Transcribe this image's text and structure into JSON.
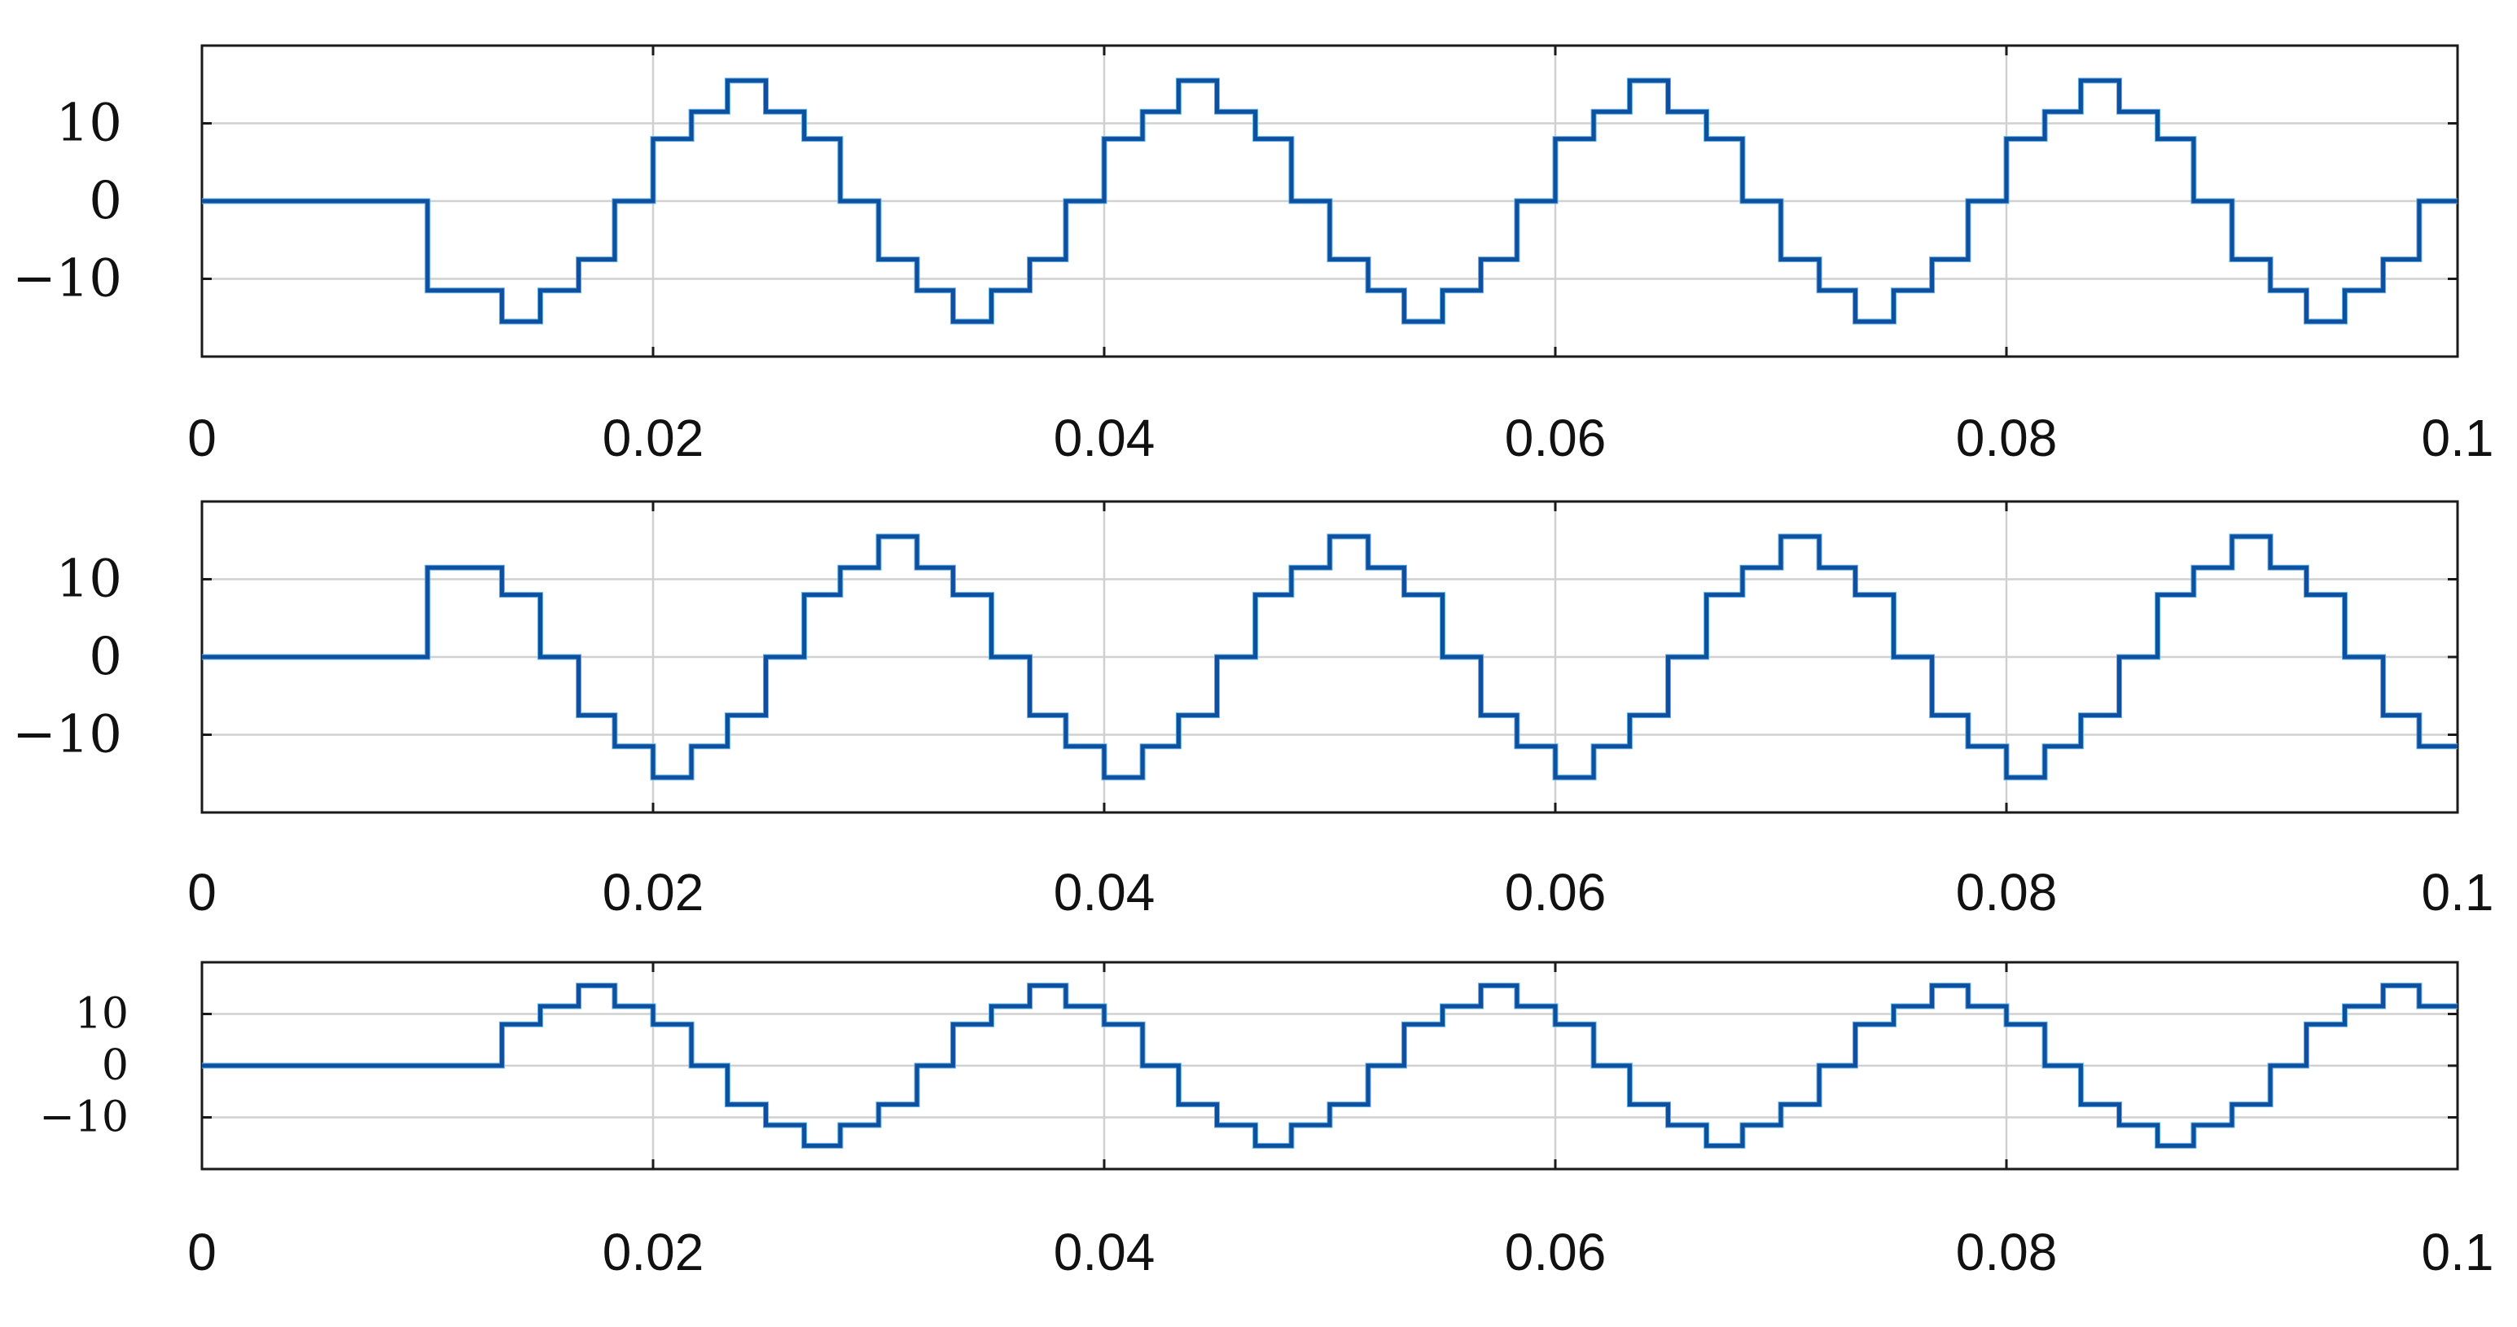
{
  "chart_data": [
    {
      "type": "line",
      "step": "post",
      "title": "",
      "xlabel": "",
      "ylabel": "",
      "xlim": [
        0,
        0.1
      ],
      "ylim": [
        -20,
        20
      ],
      "xticks": [
        0,
        0.02,
        0.04,
        0.06,
        0.08,
        0.1
      ],
      "xtick_labels": [
        "0",
        "0.02",
        "0.04",
        "0.06",
        "0.08",
        "0.1"
      ],
      "yticks": [
        10,
        0,
        -10
      ],
      "ytick_labels": [
        "10",
        "0",
        "−10"
      ],
      "grid": true,
      "series": [
        {
          "color": "#0e4f9e",
          "x": [
            0,
            0.01,
            0.0133,
            0.015,
            0.0167,
            0.0183,
            0.02,
            0.0217,
            0.0233,
            0.025,
            0.0267,
            0.0283,
            0.03,
            0.0317,
            0.0333,
            0.035,
            0.0367,
            0.0383,
            0.04,
            0.0417,
            0.0433,
            0.045,
            0.0467,
            0.0483,
            0.05,
            0.0517,
            0.0533,
            0.055,
            0.0567,
            0.0583,
            0.06,
            0.0617,
            0.0633,
            0.065,
            0.0667,
            0.0683,
            0.07,
            0.0717,
            0.0733,
            0.075,
            0.0767,
            0.0783,
            0.08,
            0.0817,
            0.0833,
            0.085,
            0.0867,
            0.0883,
            0.09,
            0.0917,
            0.0933,
            0.095,
            0.0967,
            0.0983,
            0.1
          ],
          "y": [
            0,
            -11.5,
            -15.5,
            -11.5,
            -7.5,
            0,
            8,
            11.5,
            15.5,
            11.5,
            8,
            0,
            -7.5,
            -11.5,
            -15.5,
            -11.5,
            -7.5,
            0,
            8,
            11.5,
            15.5,
            11.5,
            8,
            0,
            -7.5,
            -11.5,
            -15.5,
            -11.5,
            -7.5,
            0,
            8,
            11.5,
            15.5,
            11.5,
            8,
            0,
            -7.5,
            -11.5,
            -15.5,
            -11.5,
            -7.5,
            0,
            8,
            11.5,
            15.5,
            11.5,
            8,
            0,
            -7.5,
            -11.5,
            -15.5,
            -11.5,
            -7.5,
            0,
            0
          ]
        }
      ]
    },
    {
      "type": "line",
      "step": "post",
      "title": "",
      "xlabel": "",
      "ylabel": "",
      "xlim": [
        0,
        0.1
      ],
      "ylim": [
        -20,
        20
      ],
      "xticks": [
        0,
        0.02,
        0.04,
        0.06,
        0.08,
        0.1
      ],
      "xtick_labels": [
        "0",
        "0.02",
        "0.04",
        "0.06",
        "0.08",
        "0.1"
      ],
      "yticks": [
        10,
        0,
        -10
      ],
      "ytick_labels": [
        "10",
        "0",
        "−10"
      ],
      "grid": true,
      "series": [
        {
          "color": "#0e4f9e",
          "x": [
            0,
            0.01,
            0.0133,
            0.015,
            0.0167,
            0.0183,
            0.02,
            0.0217,
            0.0233,
            0.025,
            0.0267,
            0.0283,
            0.03,
            0.0317,
            0.0333,
            0.035,
            0.0367,
            0.0383,
            0.04,
            0.0417,
            0.0433,
            0.045,
            0.0467,
            0.0483,
            0.05,
            0.0517,
            0.0533,
            0.055,
            0.0567,
            0.0583,
            0.06,
            0.0617,
            0.0633,
            0.065,
            0.0667,
            0.0683,
            0.07,
            0.0717,
            0.0733,
            0.075,
            0.0767,
            0.0783,
            0.08,
            0.0817,
            0.0833,
            0.085,
            0.0867,
            0.0883,
            0.09,
            0.0917,
            0.0933,
            0.095,
            0.0967,
            0.0983,
            0.1
          ],
          "y": [
            0,
            11.5,
            8,
            0,
            -7.5,
            -11.5,
            -15.5,
            -11.5,
            -7.5,
            0,
            8,
            11.5,
            15.5,
            11.5,
            8,
            0,
            -7.5,
            -11.5,
            -15.5,
            -11.5,
            -7.5,
            0,
            8,
            11.5,
            15.5,
            11.5,
            8,
            0,
            -7.5,
            -11.5,
            -15.5,
            -11.5,
            -7.5,
            0,
            8,
            11.5,
            15.5,
            11.5,
            8,
            0,
            -7.5,
            -11.5,
            -15.5,
            -11.5,
            -7.5,
            0,
            8,
            11.5,
            15.5,
            11.5,
            8,
            0,
            -7.5,
            -11.5,
            -11.5
          ]
        }
      ]
    },
    {
      "type": "line",
      "step": "post",
      "title": "",
      "xlabel": "",
      "ylabel": "",
      "xlim": [
        0,
        0.1
      ],
      "ylim": [
        -20,
        20
      ],
      "xticks": [
        0,
        0.02,
        0.04,
        0.06,
        0.08,
        0.1
      ],
      "xtick_labels": [
        "0",
        "0.02",
        "0.04",
        "0.06",
        "0.08",
        "0.1"
      ],
      "yticks": [
        10,
        0,
        -10
      ],
      "ytick_labels": [
        "10",
        "0",
        "−10"
      ],
      "grid": true,
      "series": [
        {
          "color": "#0e4f9e",
          "x": [
            0,
            0.0133,
            0.015,
            0.0167,
            0.0183,
            0.02,
            0.0217,
            0.0233,
            0.025,
            0.0267,
            0.0283,
            0.03,
            0.0317,
            0.0333,
            0.035,
            0.0367,
            0.0383,
            0.04,
            0.0417,
            0.0433,
            0.045,
            0.0467,
            0.0483,
            0.05,
            0.0517,
            0.0533,
            0.055,
            0.0567,
            0.0583,
            0.06,
            0.0617,
            0.0633,
            0.065,
            0.0667,
            0.0683,
            0.07,
            0.0717,
            0.0733,
            0.075,
            0.0767,
            0.0783,
            0.08,
            0.0817,
            0.0833,
            0.085,
            0.0867,
            0.0883,
            0.09,
            0.0917,
            0.0933,
            0.095,
            0.0967,
            0.0983,
            0.1
          ],
          "y": [
            0,
            8,
            11.5,
            15.5,
            11.5,
            8,
            0,
            -7.5,
            -11.5,
            -15.5,
            -11.5,
            -7.5,
            0,
            8,
            11.5,
            15.5,
            11.5,
            8,
            0,
            -7.5,
            -11.5,
            -15.5,
            -11.5,
            -7.5,
            0,
            8,
            11.5,
            15.5,
            11.5,
            8,
            0,
            -7.5,
            -11.5,
            -15.5,
            -11.5,
            -7.5,
            0,
            8,
            11.5,
            15.5,
            11.5,
            8,
            0,
            -7.5,
            -11.5,
            -15.5,
            -11.5,
            -7.5,
            0,
            8,
            11.5,
            15.5,
            11.5,
            11.5
          ]
        }
      ]
    }
  ]
}
